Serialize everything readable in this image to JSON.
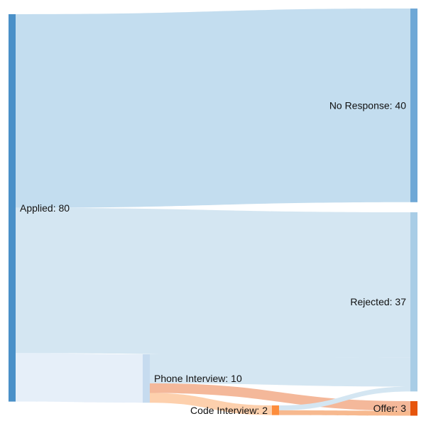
{
  "chart_data": {
    "type": "sankey",
    "nodes": [
      {
        "id": "applied",
        "label": "Applied: 80",
        "value": 80,
        "color": "#4a90c8"
      },
      {
        "id": "no_response",
        "label": "No Response: 40",
        "value": 40,
        "color": "#6fa8d6"
      },
      {
        "id": "rejected",
        "label": "Rejected: 37",
        "value": 37,
        "color": "#a9cde6"
      },
      {
        "id": "phone",
        "label": "Phone Interview: 10",
        "value": 10,
        "color": "#c6dbef"
      },
      {
        "id": "code",
        "label": "Code Interview: 2",
        "value": 2,
        "color": "#fd8d3c"
      },
      {
        "id": "offer",
        "label": "Offer: 3",
        "value": 3,
        "color": "#e6550d"
      }
    ],
    "links": [
      {
        "source": "applied",
        "target": "no_response",
        "value": 40,
        "color": "#c3ddef"
      },
      {
        "source": "applied",
        "target": "rejected",
        "value": 30,
        "color": "#d4e6f2"
      },
      {
        "source": "applied",
        "target": "phone",
        "value": 10,
        "color": "#e6eff9"
      },
      {
        "source": "phone",
        "target": "rejected",
        "value": 6,
        "color": "#d4e6f2"
      },
      {
        "source": "phone",
        "target": "offer",
        "value": 2,
        "color": "#f4b89a"
      },
      {
        "source": "phone",
        "target": "code",
        "value": 2,
        "color": "#fdd0ad"
      },
      {
        "source": "code",
        "target": "rejected",
        "value": 1,
        "color": "#d4e6f2"
      },
      {
        "source": "code",
        "target": "offer",
        "value": 1,
        "color": "#f7b98f"
      }
    ]
  }
}
